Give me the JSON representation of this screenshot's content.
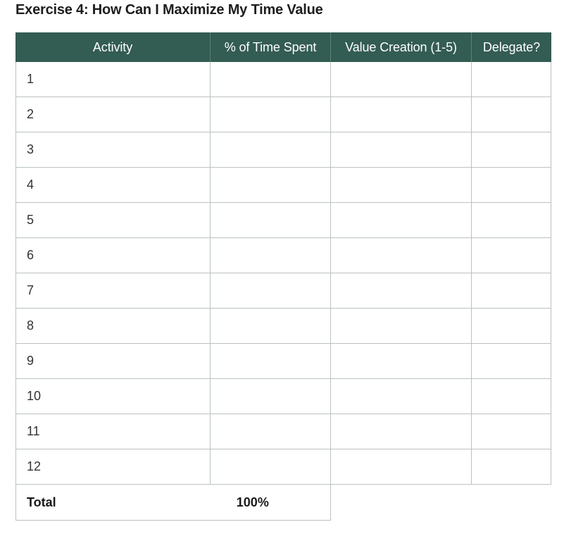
{
  "title": "Exercise 4: How Can I Maximize My Time Value",
  "colors": {
    "header_bg": "#335c52",
    "header_text": "#ffffff",
    "grid_line": "#b9c2bf"
  },
  "table": {
    "headers": [
      "Activity",
      "% of Time Spent",
      "Value Creation (1-5)",
      "Delegate?"
    ],
    "rows": [
      {
        "activity": "1",
        "time": "",
        "value": "",
        "delegate": ""
      },
      {
        "activity": "2",
        "time": "",
        "value": "",
        "delegate": ""
      },
      {
        "activity": "3",
        "time": "",
        "value": "",
        "delegate": ""
      },
      {
        "activity": "4",
        "time": "",
        "value": "",
        "delegate": ""
      },
      {
        "activity": "5",
        "time": "",
        "value": "",
        "delegate": ""
      },
      {
        "activity": "6",
        "time": "",
        "value": "",
        "delegate": ""
      },
      {
        "activity": "7",
        "time": "",
        "value": "",
        "delegate": ""
      },
      {
        "activity": "8",
        "time": "",
        "value": "",
        "delegate": ""
      },
      {
        "activity": "9",
        "time": "",
        "value": "",
        "delegate": ""
      },
      {
        "activity": "10",
        "time": "",
        "value": "",
        "delegate": ""
      },
      {
        "activity": "11",
        "time": "",
        "value": "",
        "delegate": ""
      },
      {
        "activity": "12",
        "time": "",
        "value": "",
        "delegate": ""
      }
    ],
    "total_label": "Total",
    "total_value": "100%"
  }
}
